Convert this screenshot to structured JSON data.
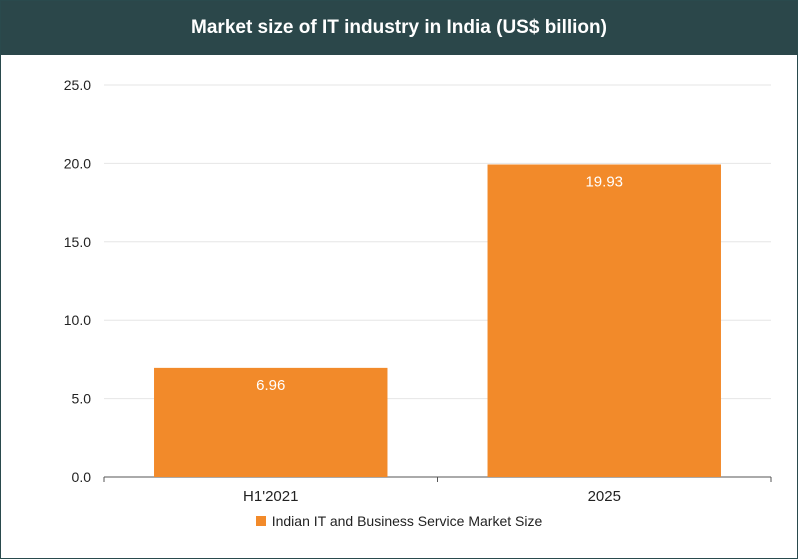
{
  "chart_data": {
    "type": "bar",
    "title": "Market size of IT industry in India (US$ billion)",
    "categories": [
      "H1'2021",
      "2025"
    ],
    "series": [
      {
        "name": "Indian IT and Business Service Market Size",
        "values": [
          6.96,
          19.93
        ],
        "data_labels": [
          "6.96",
          "19.93"
        ]
      }
    ],
    "ylim": [
      0,
      25
    ],
    "yticks": [
      "0.0",
      "5.0",
      "10.0",
      "15.0",
      "20.0",
      "25.0"
    ],
    "grid": true,
    "legend": "bottom"
  },
  "colors": {
    "bar": "#f28a2a",
    "title_bg": "#2b474a",
    "grid": "#e6e6e6",
    "axis": "#555555"
  }
}
